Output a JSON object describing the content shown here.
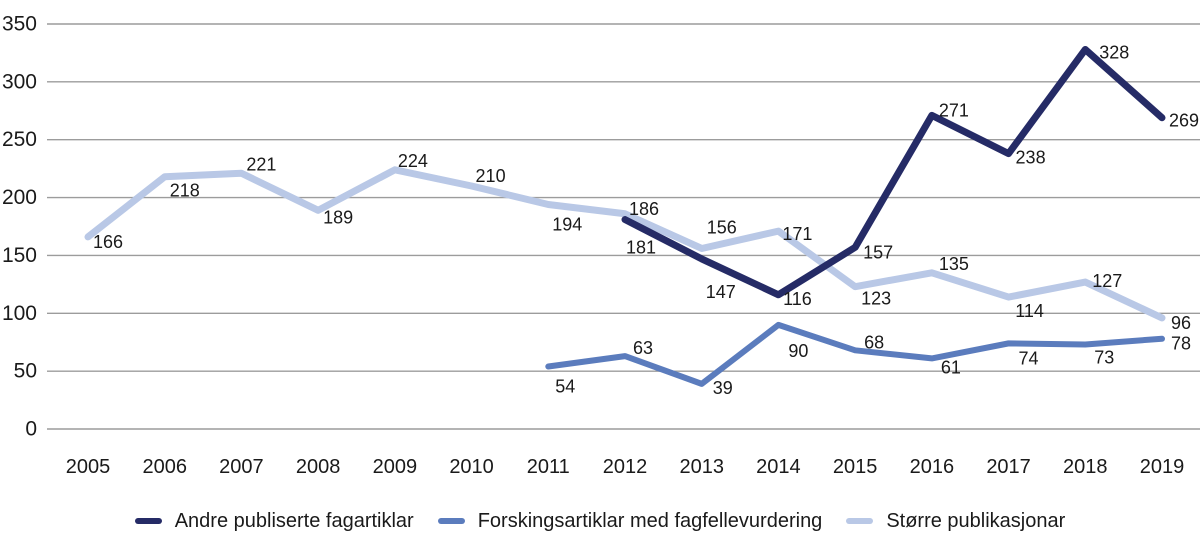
{
  "chart_data": {
    "type": "line",
    "title": "",
    "xlabel": "",
    "ylabel": "",
    "x_categories": [
      "2005",
      "2006",
      "2007",
      "2008",
      "2009",
      "2010",
      "2011",
      "2012",
      "2013",
      "2014",
      "2015",
      "2016",
      "2017",
      "2018",
      "2019"
    ],
    "y_ticks": [
      0,
      50,
      100,
      150,
      200,
      250,
      300,
      350
    ],
    "y_range": [
      0,
      350
    ],
    "grid": "horizontal-gridlines-only",
    "legend_position": "bottom-center",
    "gridline_color": "#9c9c9c",
    "text_color": "#1a1a1a",
    "background_color": "#ffffff",
    "series": [
      {
        "name": "Andre publiserte fagartiklar",
        "color": "#252b66",
        "stroke_width": 7,
        "values": [
          null,
          null,
          null,
          null,
          null,
          null,
          null,
          181,
          147,
          116,
          157,
          271,
          238,
          328,
          269
        ],
        "label_offsets": [
          null,
          null,
          null,
          null,
          null,
          null,
          null,
          [
            16,
            28
          ],
          [
            19,
            33
          ],
          [
            19,
            4
          ],
          [
            23,
            5
          ],
          [
            22,
            -5
          ],
          [
            22,
            4
          ],
          [
            29,
            3
          ],
          [
            22,
            3
          ]
        ]
      },
      {
        "name": "Forskingsartiklar med fagfellevurdering",
        "color": "#5b7cbd",
        "stroke_width": 6,
        "values": [
          null,
          null,
          null,
          null,
          null,
          null,
          54,
          63,
          39,
          90,
          68,
          61,
          74,
          73,
          78
        ],
        "label_offsets": [
          null,
          null,
          null,
          null,
          null,
          null,
          [
            17,
            20
          ],
          [
            18,
            -8
          ],
          [
            21,
            4
          ],
          [
            20,
            26
          ],
          [
            19,
            -8
          ],
          [
            19,
            9
          ],
          [
            20,
            15
          ],
          [
            19,
            13
          ],
          [
            19,
            5
          ]
        ]
      },
      {
        "name": "Større publikasjonar",
        "color": "#b9c8e6",
        "stroke_width": 7,
        "values": [
          166,
          218,
          221,
          189,
          224,
          210,
          194,
          186,
          156,
          171,
          123,
          135,
          114,
          127,
          96
        ],
        "label_offsets": [
          [
            20,
            5
          ],
          [
            20,
            14
          ],
          [
            20,
            -9
          ],
          [
            20,
            7
          ],
          [
            18,
            -9
          ],
          [
            19,
            -10
          ],
          [
            19,
            20
          ],
          [
            19,
            -5
          ],
          [
            20,
            -21
          ],
          [
            19,
            3
          ],
          [
            21,
            12
          ],
          [
            22,
            -9
          ],
          [
            21,
            14
          ],
          [
            22,
            -1
          ],
          [
            19,
            5
          ]
        ]
      }
    ]
  }
}
